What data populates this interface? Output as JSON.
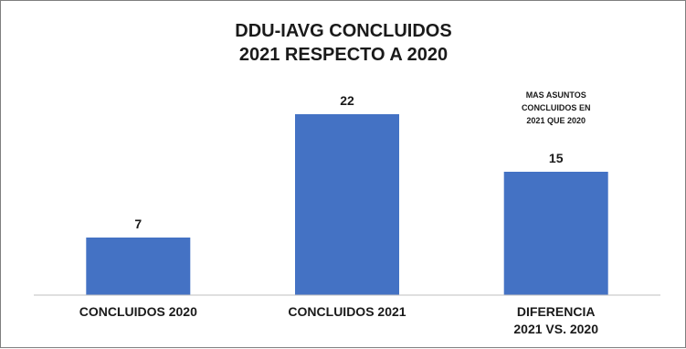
{
  "chart_data": {
    "type": "bar",
    "title_lines": [
      "DDU-IAVG CONCLUIDOS",
      "2021 RESPECTO A 2020"
    ],
    "categories": [
      [
        "CONCLUIDOS 2020"
      ],
      [
        "CONCLUIDOS 2021"
      ],
      [
        "DIFERENCIA",
        "2021 VS. 2020"
      ]
    ],
    "values": [
      7,
      22,
      15
    ],
    "data_labels": [
      "7",
      "22",
      "15"
    ],
    "annotation": {
      "category_index": 2,
      "lines": [
        "MAS ASUNTOS",
        "CONCLUIDOS EN",
        "2021  QUE 2020"
      ]
    },
    "ylim": [
      0,
      25
    ],
    "grid": false,
    "legend": "none",
    "colors": {
      "bar": "#4472C4",
      "axis": "#bfbfbf",
      "text": "#1a1a1a"
    }
  }
}
